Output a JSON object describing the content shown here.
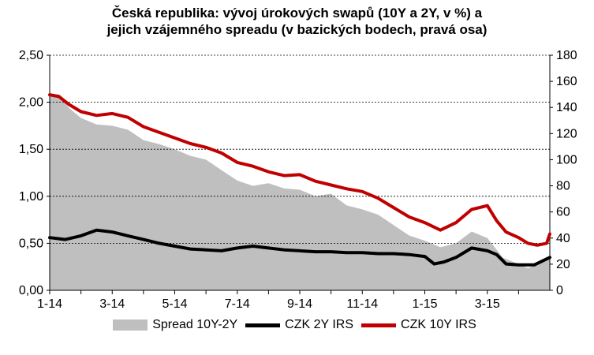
{
  "title_line1": "Česká republika: vývoj úrokových swapů (10Y a 2Y, v %) a",
  "title_line2": "jejich vzájemného spreadu (v bazických bodech, pravá osa)",
  "colors": {
    "spread": "#bfbfbf",
    "irs2y": "#000000",
    "irs10y": "#c00000",
    "grid": "#000000"
  },
  "chart_data": {
    "type": "line",
    "title": "Česká republika: vývoj úrokových swapů (10Y a 2Y, v %) a jejich vzájemného spreadu (v bazických bodech, pravá osa)",
    "xlabel": "",
    "ylabel": "",
    "x_ticks": [
      "1-14",
      "3-14",
      "5-14",
      "7-14",
      "9-14",
      "11-14",
      "1-15",
      "3-15"
    ],
    "x": [
      "2014-01",
      "2014-02",
      "2014-03",
      "2014-04",
      "2014-05",
      "2014-06",
      "2014-07",
      "2014-08",
      "2014-09",
      "2014-10",
      "2014-11",
      "2014-12",
      "2015-01",
      "2015-02",
      "2015-03",
      "2015-04",
      "2015-05"
    ],
    "y_left_ticks": [
      "0,00",
      "0,50",
      "1,00",
      "1,50",
      "2,00",
      "2,50"
    ],
    "y_left_range": [
      0,
      2.5
    ],
    "y_right_ticks": [
      "0",
      "20",
      "40",
      "60",
      "80",
      "100",
      "120",
      "140",
      "160",
      "180"
    ],
    "y_right_range": [
      0,
      180
    ],
    "grid": "horizontal dashed",
    "legend_position": "bottom",
    "series": [
      {
        "name": "Spread 10Y-2Y",
        "axis": "right",
        "style": "area",
        "x": [
          0,
          0.3,
          0.6,
          1,
          1.5,
          2,
          2.5,
          3,
          3.5,
          4,
          4.5,
          5,
          5.5,
          6,
          6.5,
          7,
          7.5,
          8,
          8.5,
          9,
          9.5,
          10,
          10.5,
          11,
          11.5,
          12,
          12.5,
          13,
          13.5,
          14,
          14.5,
          15,
          15.3,
          15.6,
          15.9,
          16
        ],
        "values": [
          150,
          150,
          140,
          132,
          127,
          126,
          123,
          115,
          112,
          108,
          103,
          100,
          92,
          84,
          80,
          82,
          78,
          77,
          72,
          74,
          65,
          62,
          58,
          50,
          42,
          38,
          33,
          36,
          45,
          40,
          25,
          20,
          17,
          20,
          24,
          25
        ]
      },
      {
        "name": "CZK 2Y IRS",
        "axis": "left",
        "style": "line",
        "x": [
          0,
          0.5,
          1,
          1.5,
          2,
          2.5,
          3,
          3.5,
          4,
          4.5,
          5,
          5.5,
          6,
          6.5,
          7,
          7.5,
          8,
          8.5,
          9,
          9.5,
          10,
          10.5,
          11,
          11.5,
          12,
          12.3,
          12.6,
          13,
          13.5,
          14,
          14.3,
          14.6,
          15,
          15.5,
          16
        ],
        "values": [
          0.56,
          0.54,
          0.58,
          0.64,
          0.62,
          0.58,
          0.54,
          0.5,
          0.47,
          0.44,
          0.43,
          0.42,
          0.45,
          0.47,
          0.45,
          0.43,
          0.42,
          0.41,
          0.41,
          0.4,
          0.4,
          0.39,
          0.39,
          0.38,
          0.36,
          0.28,
          0.3,
          0.35,
          0.45,
          0.42,
          0.38,
          0.28,
          0.27,
          0.27,
          0.35
        ]
      },
      {
        "name": "CZK 10Y IRS",
        "axis": "left",
        "style": "line",
        "x": [
          0,
          0.3,
          0.6,
          1,
          1.5,
          2,
          2.5,
          3,
          3.5,
          4,
          4.5,
          5,
          5.5,
          6,
          6.5,
          7,
          7.5,
          8,
          8.5,
          9,
          9.5,
          10,
          10.5,
          11,
          11.5,
          12,
          12.5,
          13,
          13.5,
          14,
          14.3,
          14.6,
          15,
          15.3,
          15.6,
          15.9,
          16
        ],
        "values": [
          2.08,
          2.06,
          1.98,
          1.9,
          1.86,
          1.88,
          1.84,
          1.74,
          1.68,
          1.62,
          1.56,
          1.52,
          1.46,
          1.36,
          1.32,
          1.26,
          1.22,
          1.23,
          1.16,
          1.12,
          1.08,
          1.05,
          0.98,
          0.88,
          0.78,
          0.72,
          0.64,
          0.72,
          0.86,
          0.9,
          0.74,
          0.62,
          0.56,
          0.5,
          0.48,
          0.5,
          0.6
        ]
      }
    ]
  }
}
